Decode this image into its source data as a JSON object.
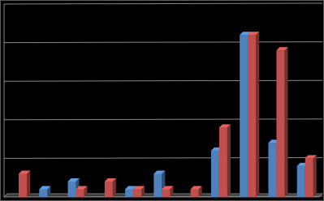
{
  "chart_data": {
    "type": "bar3d",
    "categories": [
      null,
      null,
      null,
      null,
      null,
      null,
      null,
      null,
      null,
      null,
      null
    ],
    "series": [
      {
        "color": "#4f81bd",
        "values": [
          0,
          0.2,
          0.4,
          0,
          0.2,
          0.6,
          0,
          1.2,
          4.2,
          1.4,
          0.8
        ]
      },
      {
        "color": "#c0504d",
        "values": [
          0.6,
          0,
          0.2,
          0.4,
          0.2,
          0.2,
          0.2,
          1.8,
          4.2,
          3.8,
          1.0
        ]
      }
    ],
    "ylim": [
      0,
      5
    ],
    "yticks": [
      0,
      1,
      2,
      3,
      4,
      5
    ],
    "grid": true
  }
}
